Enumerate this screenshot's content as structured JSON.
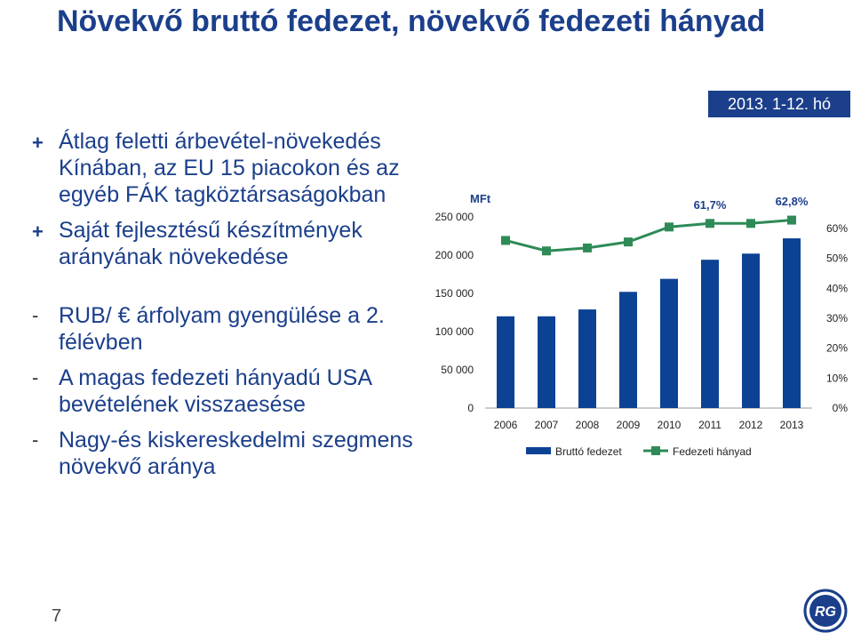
{
  "slide": {
    "title": "Növekvő bruttó fedezet, növekvő fedezeti hányad",
    "page_number": "7",
    "date_badge": "2013. 1-12. hó",
    "colors": {
      "title": "#1b3f8b",
      "bar": "#0b4294",
      "line": "#2e8b57",
      "badge": "#1b3f8b"
    },
    "logo": "richter-gedeon-logo",
    "bullets": [
      {
        "symbol": "+",
        "text": "Átlag feletti árbevétel-növekedés Kínában, az EU 15 piacokon és az egyéb FÁK tagköztársaságokban"
      },
      {
        "symbol": "+",
        "text": "Saját fejlesztésű készítmények arányának növekedése"
      },
      {
        "symbol": "-",
        "text": "RUB/ € árfolyam gyengülése a 2. félévben"
      },
      {
        "symbol": "-",
        "text": "A magas fedezeti hányadú USA bevételének visszaesése"
      },
      {
        "symbol": "-",
        "text": "Nagy-és kiskereskedelmi szegmens növekvő aránya"
      }
    ]
  },
  "chart_data": {
    "type": "bar",
    "categories": [
      "2006",
      "2007",
      "2008",
      "2009",
      "2010",
      "2011",
      "2012",
      "2013"
    ],
    "series": [
      {
        "name": "Bruttó fedezet",
        "type": "bar",
        "axis": "left",
        "values": [
          120000,
          120000,
          129000,
          152000,
          169000,
          194000,
          202000,
          222000
        ]
      },
      {
        "name": "Fedezeti hányad",
        "type": "line",
        "axis": "right",
        "values": [
          56.0,
          52.5,
          53.5,
          55.5,
          60.5,
          61.7,
          61.7,
          62.8
        ]
      }
    ],
    "y_left": {
      "unit": "MFt",
      "ylim": [
        0,
        250000
      ],
      "ticks": [
        "0",
        "50 000",
        "100 000",
        "150 000",
        "200 000",
        "250 000"
      ]
    },
    "y_right": {
      "ylim": [
        0,
        60
      ],
      "ticks": [
        "0%",
        "10%",
        "20%",
        "30%",
        "40%",
        "50%",
        "60%"
      ]
    },
    "annotations": [
      {
        "category": "2011",
        "text": "61,7%"
      },
      {
        "category": "2013",
        "text": "62,8%"
      }
    ],
    "legend": {
      "placement": "bottom",
      "items": [
        "Bruttó fedezet",
        "Fedezeti hányad"
      ]
    },
    "grid": false
  }
}
